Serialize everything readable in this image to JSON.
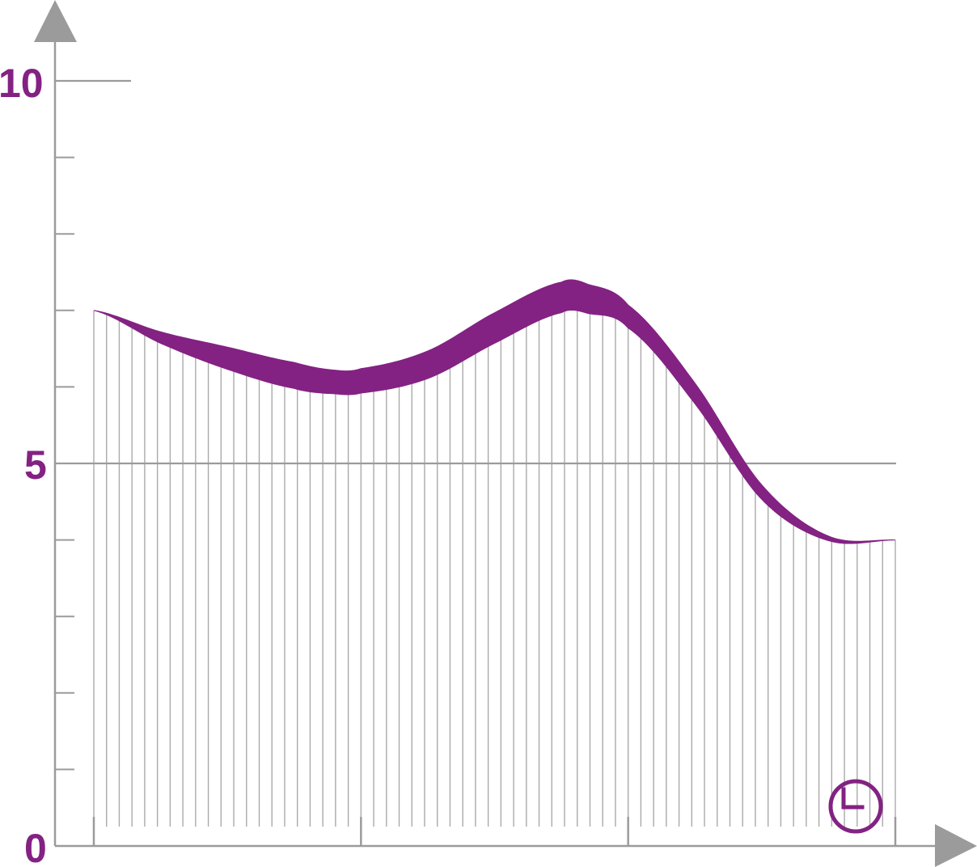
{
  "chart_data": {
    "type": "area",
    "title": "",
    "xlabel": "",
    "ylabel": "",
    "ylim": [
      0,
      10
    ],
    "xlim": [
      0,
      3
    ],
    "y_tick_labels": [
      "0",
      "5",
      "10"
    ],
    "x_major_ticks": [
      0,
      1,
      2,
      3
    ],
    "y_minor_step": 1,
    "grid": false,
    "reference_line_y": 5,
    "series": [
      {
        "x": [
          0,
          0.25,
          0.5,
          0.75,
          0.9,
          1.0,
          1.25,
          1.5,
          1.75,
          1.85,
          2.0,
          2.25,
          2.5,
          2.75,
          3.0
        ],
        "lower": [
          7.0,
          6.57,
          6.23,
          5.98,
          5.91,
          5.92,
          6.11,
          6.57,
          6.97,
          6.96,
          6.77,
          5.78,
          4.53,
          3.99,
          4.0
        ],
        "upper": [
          7.0,
          6.72,
          6.52,
          6.32,
          6.22,
          6.24,
          6.47,
          6.97,
          7.37,
          7.34,
          7.07,
          6.05,
          4.72,
          4.05,
          4.0
        ]
      }
    ],
    "vertical_hatch_count": 64,
    "clock_icon": "clock-icon",
    "colors": {
      "band": "#832283",
      "axis": "#9b9b9b",
      "hatch": "#aaaaaa",
      "label": "#832283"
    }
  }
}
